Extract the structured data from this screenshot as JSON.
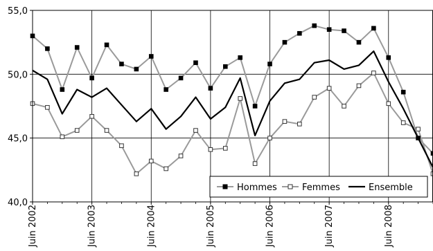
{
  "chart_data": {
    "type": "line",
    "x": [
      "2002-06",
      "2002-09",
      "2002-12",
      "2003-03",
      "2003-06",
      "2003-09",
      "2003-12",
      "2004-03",
      "2004-06",
      "2004-09",
      "2004-12",
      "2005-03",
      "2005-06",
      "2005-09",
      "2005-12",
      "2006-03",
      "2006-06",
      "2006-09",
      "2006-12",
      "2007-03",
      "2007-06",
      "2007-09",
      "2007-12",
      "2008-03",
      "2008-06",
      "2008-09",
      "2008-12",
      "2009-03"
    ],
    "xticks": [
      "Juin 2002",
      "Juin 2003",
      "Juin 2004",
      "Juin 2005",
      "Juin 2006",
      "Juin 2007",
      "Juin 2008"
    ],
    "yticks": [
      "40,0",
      "45,0",
      "50,0",
      "55,0"
    ],
    "ylim": [
      40,
      55
    ],
    "grid": true,
    "legend": "bottom-right",
    "series": [
      {
        "name": "Hommes",
        "color": "#9a9a9a",
        "marker": "filled-square",
        "values": [
          53.0,
          52.0,
          48.8,
          52.1,
          49.7,
          52.3,
          50.8,
          50.4,
          51.4,
          48.8,
          49.7,
          50.9,
          48.9,
          50.6,
          51.3,
          47.5,
          50.8,
          52.5,
          53.2,
          53.8,
          53.5,
          53.4,
          52.5,
          53.6,
          51.3,
          48.6,
          45.0,
          43.8
        ]
      },
      {
        "name": "Femmes",
        "color": "#9a9a9a",
        "marker": "open-square",
        "values": [
          47.7,
          47.4,
          45.1,
          45.6,
          46.7,
          45.6,
          44.4,
          42.2,
          43.2,
          42.6,
          43.6,
          45.6,
          44.1,
          44.2,
          48.1,
          43.0,
          45.0,
          46.3,
          46.1,
          48.2,
          48.9,
          47.5,
          49.1,
          50.1,
          47.7,
          46.2,
          45.7,
          42.2
        ]
      },
      {
        "name": "Ensemble",
        "color": "#000000",
        "marker": "none",
        "values": [
          50.3,
          49.6,
          46.9,
          48.8,
          48.2,
          48.9,
          47.6,
          46.3,
          47.3,
          45.7,
          46.7,
          48.2,
          46.5,
          47.4,
          49.7,
          45.2,
          47.9,
          49.3,
          49.6,
          50.9,
          51.1,
          50.4,
          50.7,
          51.8,
          49.4,
          47.3,
          45.0,
          42.7
        ]
      }
    ]
  }
}
